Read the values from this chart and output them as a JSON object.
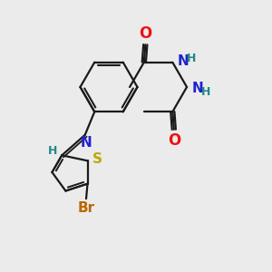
{
  "bg_color": "#ebebeb",
  "bond_color": "#1a1a1a",
  "N_color": "#2222cc",
  "O_color": "#ee1111",
  "S_color": "#bbaa00",
  "Br_color": "#bb6600",
  "H_color": "#228888",
  "line_width": 1.6,
  "figsize": [
    3.0,
    3.0
  ],
  "dpi": 100,
  "xlim": [
    0,
    10
  ],
  "ylim": [
    0,
    10
  ]
}
